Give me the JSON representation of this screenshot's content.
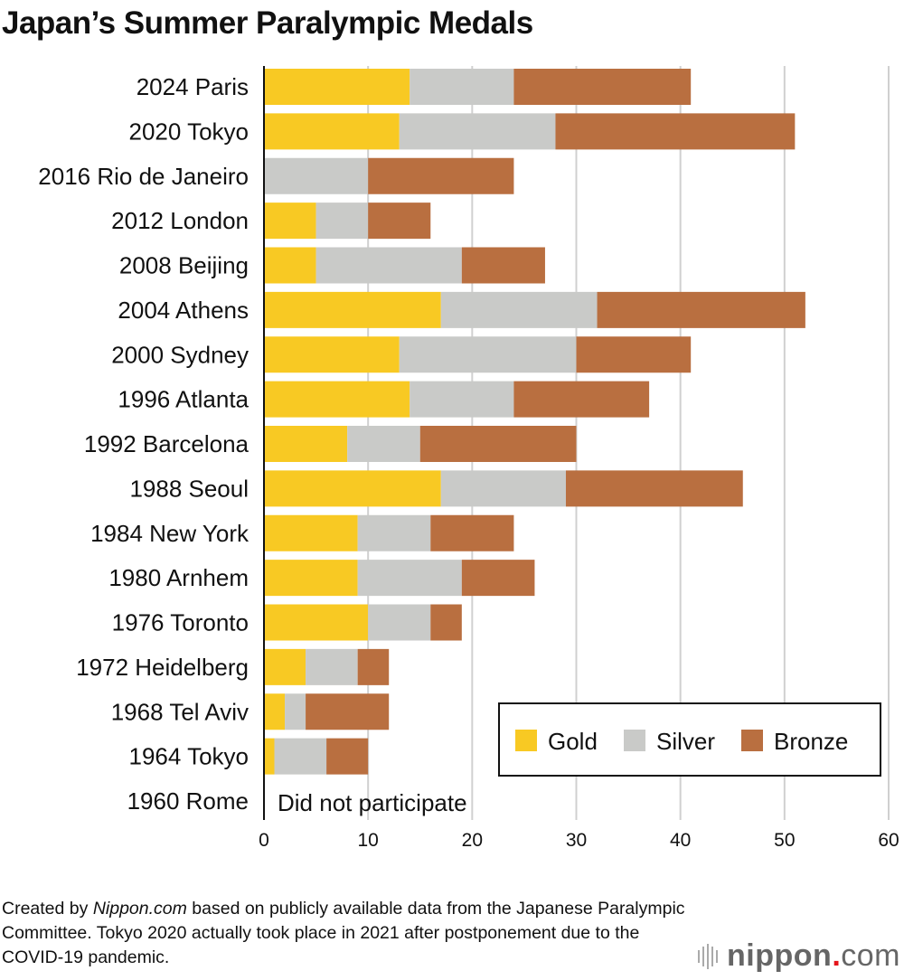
{
  "chart_data": {
    "type": "bar",
    "orientation": "horizontal",
    "stacked": true,
    "title": "Japan’s Summer Paralympic Medals",
    "xlabel": "",
    "ylabel": "",
    "xlim": [
      0,
      60
    ],
    "xticks": [
      0,
      10,
      20,
      30,
      40,
      50,
      60
    ],
    "grid": true,
    "legend_position": "bottom-right",
    "categories": [
      "2024 Paris",
      "2020 Tokyo",
      "2016 Rio de Janeiro",
      "2012 London",
      "2008 Beijing",
      "2004 Athens",
      "2000 Sydney",
      "1996 Atlanta",
      "1992 Barcelona",
      "1988 Seoul",
      "1984 New York",
      "1980 Arnhem",
      "1976 Toronto",
      "1972 Heidelberg",
      "1968 Tel Aviv",
      "1964 Tokyo",
      "1960 Rome"
    ],
    "series": [
      {
        "name": "Gold",
        "color": "#f8c923",
        "values": [
          14,
          13,
          0,
          5,
          5,
          17,
          13,
          14,
          8,
          17,
          9,
          9,
          10,
          4,
          2,
          1,
          null
        ]
      },
      {
        "name": "Silver",
        "color": "#c9cac8",
        "values": [
          10,
          15,
          10,
          5,
          14,
          15,
          17,
          10,
          7,
          12,
          7,
          10,
          6,
          5,
          2,
          5,
          null
        ]
      },
      {
        "name": "Bronze",
        "color": "#b96f40",
        "values": [
          17,
          23,
          14,
          6,
          8,
          20,
          11,
          13,
          15,
          17,
          8,
          7,
          3,
          3,
          8,
          4,
          null
        ]
      }
    ],
    "annotations": [
      {
        "category": "1960 Rome",
        "text": "Did not participate"
      }
    ]
  },
  "note": {
    "prefix": "Created by ",
    "source": "Nippon.com",
    "suffix": " based on publicly available data from the Japanese Paralympic Committee. Tokyo 2020 actually took place in 2021 after postponement due to the COVID-19 pandemic."
  },
  "logo": {
    "name": "nippon",
    "dot": ".",
    "tld": "com"
  }
}
